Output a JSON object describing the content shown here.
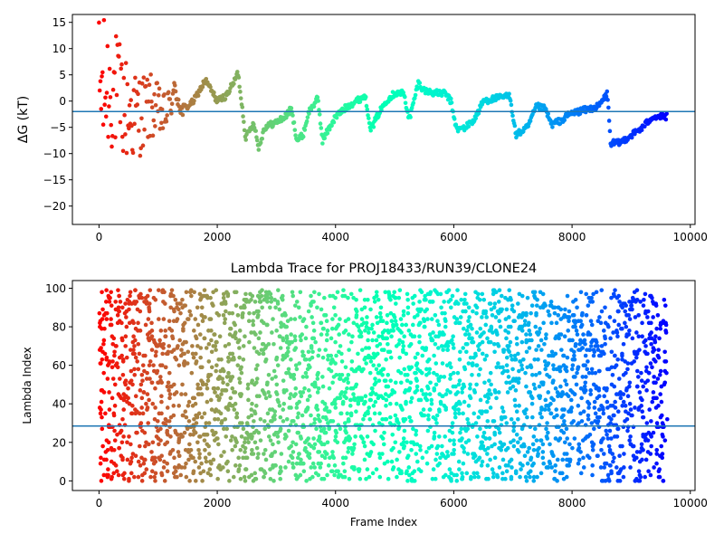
{
  "chart_data": [
    {
      "type": "scatter",
      "title": "",
      "xlabel": "",
      "ylabel": "ΔG (kT)",
      "xlim": [
        -450,
        10080
      ],
      "ylim": [
        -23.5,
        16.5
      ],
      "xticks": [
        0,
        2000,
        4000,
        6000,
        8000,
        10000
      ],
      "yticks": [
        -20,
        -15,
        -10,
        -5,
        0,
        5,
        10,
        15
      ],
      "xtick_labels": [
        "0",
        "2000",
        "4000",
        "6000",
        "8000",
        "10000"
      ],
      "ytick_labels": [
        "−20",
        "−15",
        "−10",
        "−5",
        "0",
        "5",
        "10",
        "15"
      ],
      "grid": false,
      "colormap": "rainbow_r (by frame index)",
      "hline": {
        "y": -2.0,
        "color": "#1f77b4"
      },
      "trace_keypoints": [
        [
          60,
          2
        ],
        [
          200,
          3
        ],
        [
          420,
          -1
        ],
        [
          600,
          -3
        ],
        [
          900,
          -1
        ],
        [
          1100,
          -3
        ],
        [
          1300,
          2
        ],
        [
          1400,
          -2
        ],
        [
          1600,
          0
        ],
        [
          1800,
          4
        ],
        [
          2000,
          0
        ],
        [
          2150,
          1
        ],
        [
          2300,
          4
        ],
        [
          2350,
          5.5
        ],
        [
          2420,
          -1
        ],
        [
          2480,
          -7
        ],
        [
          2620,
          -4
        ],
        [
          2700,
          -9
        ],
        [
          2800,
          -5
        ],
        [
          3000,
          -4
        ],
        [
          3150,
          -3
        ],
        [
          3250,
          -1.5
        ],
        [
          3350,
          -7.5
        ],
        [
          3450,
          -6.5
        ],
        [
          3550,
          -2
        ],
        [
          3700,
          0.5
        ],
        [
          3780,
          -7.5
        ],
        [
          3900,
          -5
        ],
        [
          4000,
          -3
        ],
        [
          4200,
          -1
        ],
        [
          4350,
          0
        ],
        [
          4500,
          1
        ],
        [
          4600,
          -5.5
        ],
        [
          4700,
          -3
        ],
        [
          4850,
          0
        ],
        [
          5000,
          1.5
        ],
        [
          5150,
          1.5
        ],
        [
          5250,
          -3.5
        ],
        [
          5400,
          3.5
        ],
        [
          5500,
          2
        ],
        [
          5700,
          1.5
        ],
        [
          5850,
          1.5
        ],
        [
          5950,
          0
        ],
        [
          6050,
          -5.5
        ],
        [
          6200,
          -5
        ],
        [
          6350,
          -3.5
        ],
        [
          6500,
          0
        ],
        [
          6700,
          0.5
        ],
        [
          6950,
          1
        ],
        [
          7050,
          -6.5
        ],
        [
          7250,
          -5
        ],
        [
          7400,
          -1
        ],
        [
          7550,
          -1.5
        ],
        [
          7650,
          -4.5
        ],
        [
          7850,
          -3.5
        ],
        [
          7950,
          -2.5
        ],
        [
          8100,
          -2
        ],
        [
          8300,
          -1.5
        ],
        [
          8450,
          -1
        ],
        [
          8600,
          1.5
        ],
        [
          8650,
          -8
        ],
        [
          8800,
          -8
        ],
        [
          9000,
          -6.5
        ],
        [
          9200,
          -5
        ],
        [
          9350,
          -3
        ],
        [
          9450,
          -3
        ],
        [
          9600,
          -3
        ]
      ]
    },
    {
      "type": "scatter",
      "title": "Lambda Trace for PROJ18433/RUN39/CLONE24",
      "xlabel": "Frame Index",
      "ylabel": "Lambda Index",
      "xlim": [
        -450,
        10080
      ],
      "ylim": [
        -5,
        104
      ],
      "xticks": [
        0,
        2000,
        4000,
        6000,
        8000,
        10000
      ],
      "yticks": [
        0,
        20,
        40,
        60,
        80,
        100
      ],
      "xtick_labels": [
        "0",
        "2000",
        "4000",
        "6000",
        "8000",
        "10000"
      ],
      "ytick_labels": [
        "0",
        "20",
        "40",
        "60",
        "80",
        "100"
      ],
      "grid": false,
      "colormap": "rainbow_r (by frame index)",
      "hline": {
        "y": 28.5,
        "color": "#1f77b4"
      },
      "frame_range": [
        0,
        9600
      ],
      "lambda_range": [
        0,
        99
      ]
    }
  ]
}
